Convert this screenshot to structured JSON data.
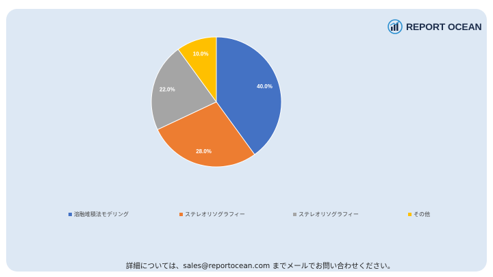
{
  "brand": {
    "logo_text": "REPORT OCEAN",
    "icon": "bar-chart-globe-icon"
  },
  "colors": {
    "background": "#dde8f4",
    "series": [
      "#4472c4",
      "#ed7d31",
      "#a5a5a5",
      "#ffc000"
    ]
  },
  "chart_data": {
    "type": "pie",
    "categories": [
      "溶融堆積法モデリング",
      "ステレオリソグラフィー",
      "ステレオリソグラフィー",
      "その他"
    ],
    "values": [
      40.0,
      28.0,
      22.0,
      10.0
    ],
    "data_labels": [
      "40.0%",
      "28.0%",
      "22.0%",
      "10.0%"
    ],
    "start_angle": "12 o'clock",
    "direction": "clockwise",
    "legend_position": "bottom",
    "title": ""
  },
  "footer": {
    "contact_text": "詳細については、sales@reportocean.com までメールでお問い合わせください。"
  }
}
